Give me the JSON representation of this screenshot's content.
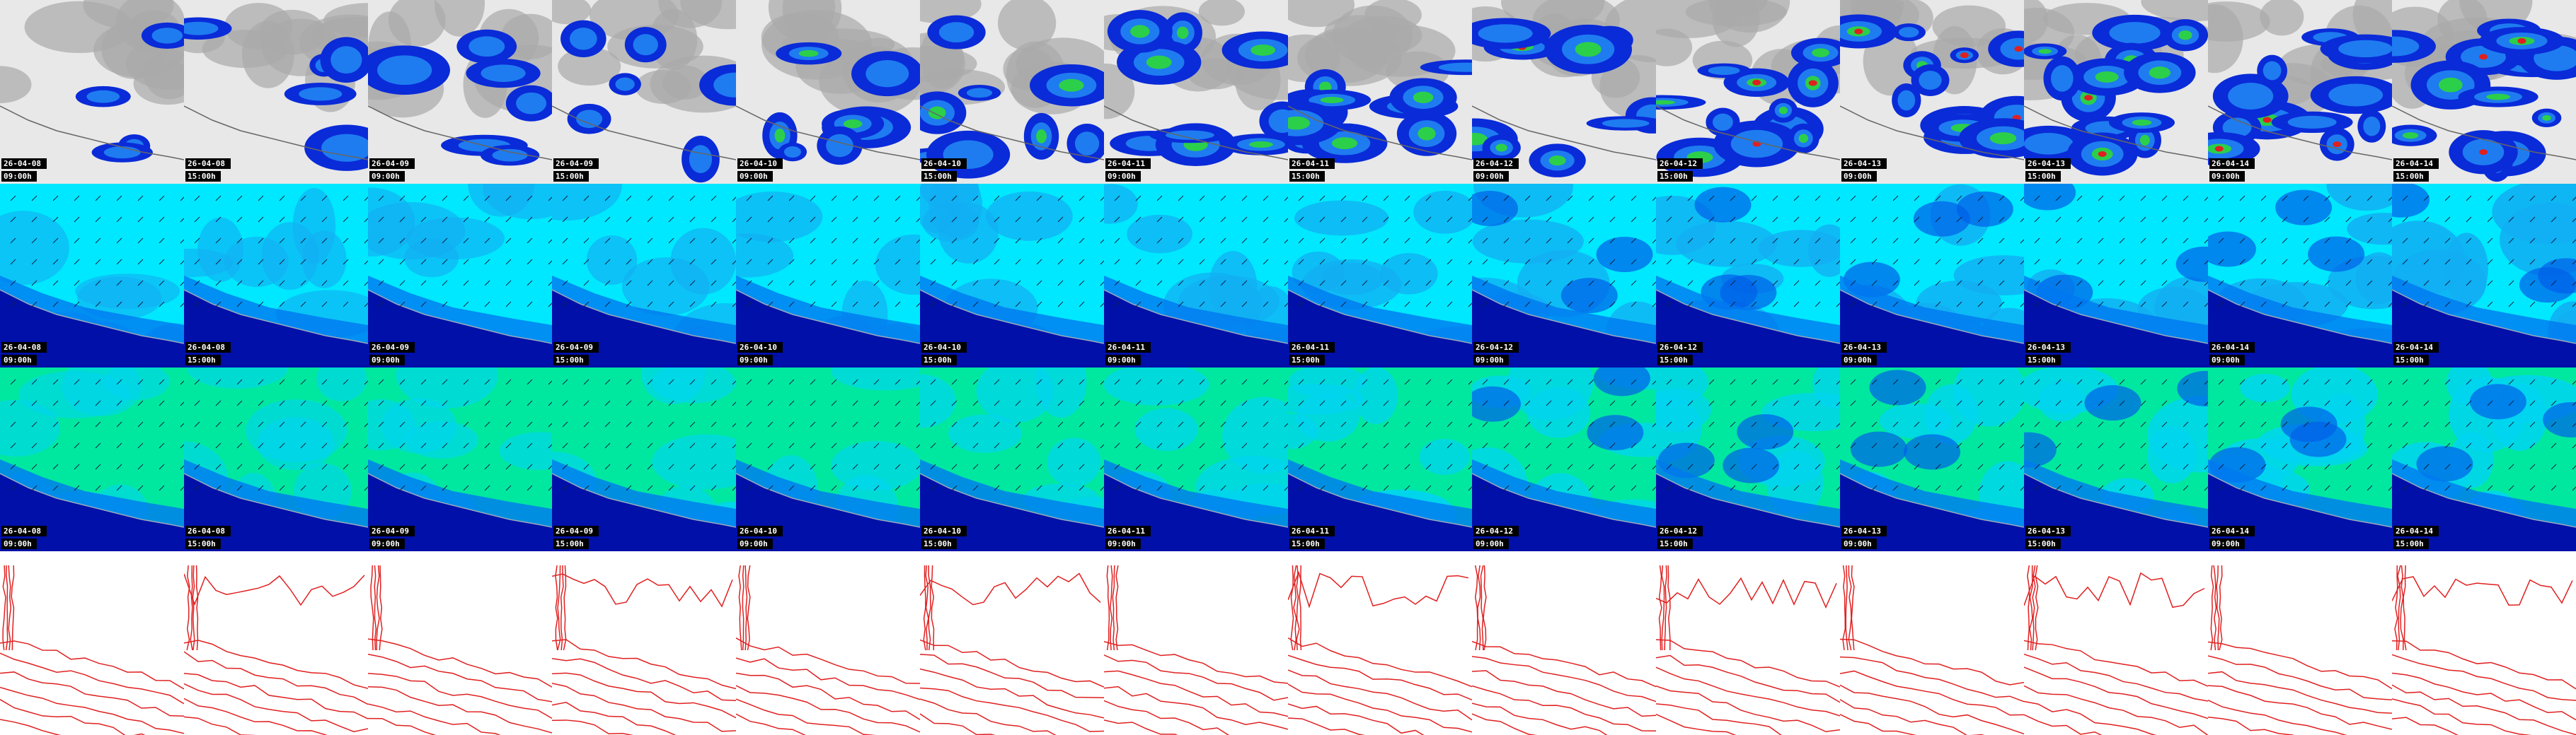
{
  "rows": [
    {
      "tiles": [
        {
          "date": "26-04-08",
          "time": "09:00h"
        },
        {
          "date": "26-04-08",
          "time": "15:00h"
        },
        {
          "date": "26-04-09",
          "time": "09:00h"
        },
        {
          "date": "26-04-09",
          "time": "15:00h"
        },
        {
          "date": "26-04-10",
          "time": "09:00h"
        },
        {
          "date": "26-04-10",
          "time": "15:00h"
        },
        {
          "date": "26-04-11",
          "time": "09:00h"
        },
        {
          "date": "26-04-11",
          "time": "15:00h"
        },
        {
          "date": "26-04-12",
          "time": "09:00h"
        },
        {
          "date": "26-04-12",
          "time": "15:00h"
        },
        {
          "date": "26-04-13",
          "time": "09:00h"
        },
        {
          "date": "26-04-13",
          "time": "15:00h"
        },
        {
          "date": "26-04-14",
          "time": "09:00h"
        },
        {
          "date": "26-04-14",
          "time": "15:00h"
        }
      ]
    },
    {
      "tiles": [
        {
          "date": "26-04-08",
          "time": "09:00h"
        },
        {
          "date": "26-04-08",
          "time": "15:00h"
        },
        {
          "date": "26-04-09",
          "time": "09:00h"
        },
        {
          "date": "26-04-09",
          "time": "15:00h"
        },
        {
          "date": "26-04-10",
          "time": "09:00h"
        },
        {
          "date": "26-04-10",
          "time": "15:00h"
        },
        {
          "date": "26-04-11",
          "time": "09:00h"
        },
        {
          "date": "26-04-11",
          "time": "15:00h"
        },
        {
          "date": "26-04-12",
          "time": "09:00h"
        },
        {
          "date": "26-04-12",
          "time": "15:00h"
        },
        {
          "date": "26-04-13",
          "time": "09:00h"
        },
        {
          "date": "26-04-13",
          "time": "15:00h"
        },
        {
          "date": "26-04-14",
          "time": "09:00h"
        },
        {
          "date": "26-04-14",
          "time": "15:00h"
        }
      ]
    },
    {
      "tiles": [
        {
          "date": "26-04-08",
          "time": "09:00h"
        },
        {
          "date": "26-04-08",
          "time": "15:00h"
        },
        {
          "date": "26-04-09",
          "time": "09:00h"
        },
        {
          "date": "26-04-09",
          "time": "15:00h"
        },
        {
          "date": "26-04-10",
          "time": "09:00h"
        },
        {
          "date": "26-04-10",
          "time": "15:00h"
        },
        {
          "date": "26-04-11",
          "time": "09:00h"
        },
        {
          "date": "26-04-11",
          "time": "15:00h"
        },
        {
          "date": "26-04-12",
          "time": "09:00h"
        },
        {
          "date": "26-04-12",
          "time": "15:00h"
        },
        {
          "date": "26-04-13",
          "time": "09:00h"
        },
        {
          "date": "26-04-13",
          "time": "15:00h"
        },
        {
          "date": "26-04-14",
          "time": "09:00h"
        },
        {
          "date": "26-04-14",
          "time": "15:00h"
        }
      ]
    }
  ]
}
